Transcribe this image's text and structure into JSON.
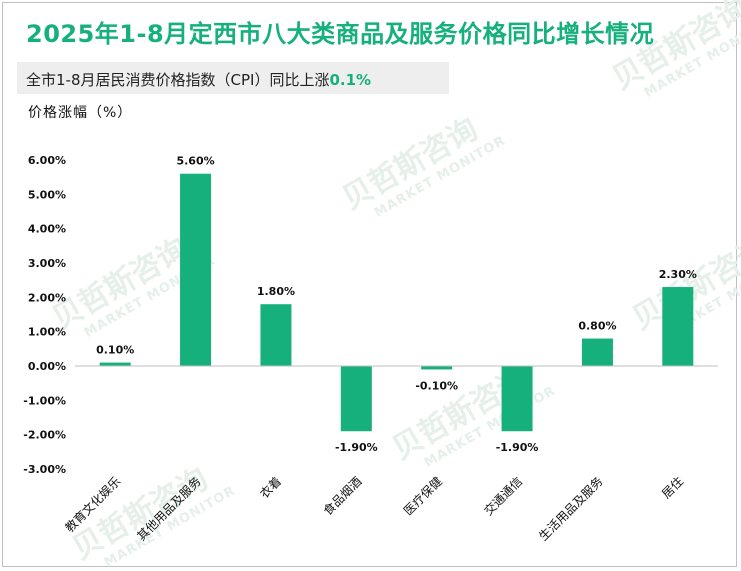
{
  "title": "2025年1-8月定西市八大类商品及服务价格同比增长情况",
  "subtitle": {
    "prefix": "全市1-8月居民消费价格指数（CPI）同比上涨",
    "highlight": "0.1%"
  },
  "watermark": {
    "brand": "贝哲斯咨询",
    "sub": "MARKET MONITOR"
  },
  "colors": {
    "accent": "#16b07d",
    "bar": "#16b07d",
    "axis": "#bfbfbf"
  },
  "chart_data": {
    "type": "bar",
    "ylabel": "价格涨幅（%）",
    "categories": [
      "教育文化娱乐",
      "其他用品及服务",
      "衣着",
      "食品烟酒",
      "医疗保健",
      "交通通信",
      "生活用品及服务",
      "居住"
    ],
    "values": [
      0.1,
      5.6,
      1.8,
      -1.9,
      -0.1,
      -1.9,
      0.8,
      2.3
    ],
    "data_labels": [
      "0.10%",
      "5.60%",
      "1.80%",
      "-1.90%",
      "-0.10%",
      "-1.90%",
      "0.80%",
      "2.30%"
    ],
    "ylim": [
      -3.0,
      6.0
    ],
    "yticks": [
      6.0,
      5.0,
      4.0,
      3.0,
      2.0,
      1.0,
      0.0,
      -1.0,
      -2.0,
      -3.0
    ],
    "ytick_labels": [
      "6.00%",
      "5.00%",
      "4.00%",
      "3.00%",
      "2.00%",
      "1.00%",
      "0.00%",
      "-1.00%",
      "-2.00%",
      "-3.00%"
    ],
    "grid": false,
    "legend": "none"
  }
}
